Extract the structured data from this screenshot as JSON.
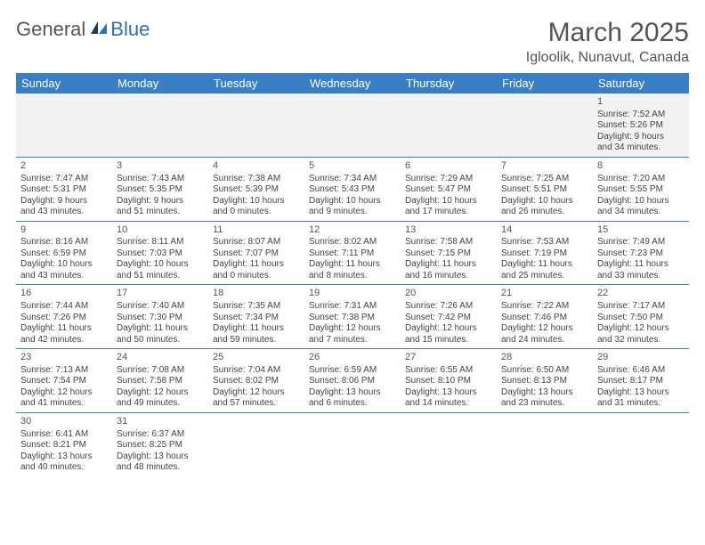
{
  "logo": {
    "text1": "General",
    "text2": "Blue"
  },
  "title": "March 2025",
  "location": "Igloolik, Nunavut, Canada",
  "day_names": [
    "Sunday",
    "Monday",
    "Tuesday",
    "Wednesday",
    "Thursday",
    "Friday",
    "Saturday"
  ],
  "colors": {
    "header_bg": "#3a7fc4",
    "header_text": "#ffffff",
    "first_row_bg": "#f2f2f2",
    "border": "#3a7fc4",
    "text": "#444444",
    "title_text": "#555555"
  },
  "weeks": [
    [
      null,
      null,
      null,
      null,
      null,
      null,
      {
        "n": "1",
        "sr": "Sunrise: 7:52 AM",
        "ss": "Sunset: 5:26 PM",
        "dl1": "Daylight: 9 hours",
        "dl2": "and 34 minutes."
      }
    ],
    [
      {
        "n": "2",
        "sr": "Sunrise: 7:47 AM",
        "ss": "Sunset: 5:31 PM",
        "dl1": "Daylight: 9 hours",
        "dl2": "and 43 minutes."
      },
      {
        "n": "3",
        "sr": "Sunrise: 7:43 AM",
        "ss": "Sunset: 5:35 PM",
        "dl1": "Daylight: 9 hours",
        "dl2": "and 51 minutes."
      },
      {
        "n": "4",
        "sr": "Sunrise: 7:38 AM",
        "ss": "Sunset: 5:39 PM",
        "dl1": "Daylight: 10 hours",
        "dl2": "and 0 minutes."
      },
      {
        "n": "5",
        "sr": "Sunrise: 7:34 AM",
        "ss": "Sunset: 5:43 PM",
        "dl1": "Daylight: 10 hours",
        "dl2": "and 9 minutes."
      },
      {
        "n": "6",
        "sr": "Sunrise: 7:29 AM",
        "ss": "Sunset: 5:47 PM",
        "dl1": "Daylight: 10 hours",
        "dl2": "and 17 minutes."
      },
      {
        "n": "7",
        "sr": "Sunrise: 7:25 AM",
        "ss": "Sunset: 5:51 PM",
        "dl1": "Daylight: 10 hours",
        "dl2": "and 26 minutes."
      },
      {
        "n": "8",
        "sr": "Sunrise: 7:20 AM",
        "ss": "Sunset: 5:55 PM",
        "dl1": "Daylight: 10 hours",
        "dl2": "and 34 minutes."
      }
    ],
    [
      {
        "n": "9",
        "sr": "Sunrise: 8:16 AM",
        "ss": "Sunset: 6:59 PM",
        "dl1": "Daylight: 10 hours",
        "dl2": "and 43 minutes."
      },
      {
        "n": "10",
        "sr": "Sunrise: 8:11 AM",
        "ss": "Sunset: 7:03 PM",
        "dl1": "Daylight: 10 hours",
        "dl2": "and 51 minutes."
      },
      {
        "n": "11",
        "sr": "Sunrise: 8:07 AM",
        "ss": "Sunset: 7:07 PM",
        "dl1": "Daylight: 11 hours",
        "dl2": "and 0 minutes."
      },
      {
        "n": "12",
        "sr": "Sunrise: 8:02 AM",
        "ss": "Sunset: 7:11 PM",
        "dl1": "Daylight: 11 hours",
        "dl2": "and 8 minutes."
      },
      {
        "n": "13",
        "sr": "Sunrise: 7:58 AM",
        "ss": "Sunset: 7:15 PM",
        "dl1": "Daylight: 11 hours",
        "dl2": "and 16 minutes."
      },
      {
        "n": "14",
        "sr": "Sunrise: 7:53 AM",
        "ss": "Sunset: 7:19 PM",
        "dl1": "Daylight: 11 hours",
        "dl2": "and 25 minutes."
      },
      {
        "n": "15",
        "sr": "Sunrise: 7:49 AM",
        "ss": "Sunset: 7:23 PM",
        "dl1": "Daylight: 11 hours",
        "dl2": "and 33 minutes."
      }
    ],
    [
      {
        "n": "16",
        "sr": "Sunrise: 7:44 AM",
        "ss": "Sunset: 7:26 PM",
        "dl1": "Daylight: 11 hours",
        "dl2": "and 42 minutes."
      },
      {
        "n": "17",
        "sr": "Sunrise: 7:40 AM",
        "ss": "Sunset: 7:30 PM",
        "dl1": "Daylight: 11 hours",
        "dl2": "and 50 minutes."
      },
      {
        "n": "18",
        "sr": "Sunrise: 7:35 AM",
        "ss": "Sunset: 7:34 PM",
        "dl1": "Daylight: 11 hours",
        "dl2": "and 59 minutes."
      },
      {
        "n": "19",
        "sr": "Sunrise: 7:31 AM",
        "ss": "Sunset: 7:38 PM",
        "dl1": "Daylight: 12 hours",
        "dl2": "and 7 minutes."
      },
      {
        "n": "20",
        "sr": "Sunrise: 7:26 AM",
        "ss": "Sunset: 7:42 PM",
        "dl1": "Daylight: 12 hours",
        "dl2": "and 15 minutes."
      },
      {
        "n": "21",
        "sr": "Sunrise: 7:22 AM",
        "ss": "Sunset: 7:46 PM",
        "dl1": "Daylight: 12 hours",
        "dl2": "and 24 minutes."
      },
      {
        "n": "22",
        "sr": "Sunrise: 7:17 AM",
        "ss": "Sunset: 7:50 PM",
        "dl1": "Daylight: 12 hours",
        "dl2": "and 32 minutes."
      }
    ],
    [
      {
        "n": "23",
        "sr": "Sunrise: 7:13 AM",
        "ss": "Sunset: 7:54 PM",
        "dl1": "Daylight: 12 hours",
        "dl2": "and 41 minutes."
      },
      {
        "n": "24",
        "sr": "Sunrise: 7:08 AM",
        "ss": "Sunset: 7:58 PM",
        "dl1": "Daylight: 12 hours",
        "dl2": "and 49 minutes."
      },
      {
        "n": "25",
        "sr": "Sunrise: 7:04 AM",
        "ss": "Sunset: 8:02 PM",
        "dl1": "Daylight: 12 hours",
        "dl2": "and 57 minutes."
      },
      {
        "n": "26",
        "sr": "Sunrise: 6:59 AM",
        "ss": "Sunset: 8:06 PM",
        "dl1": "Daylight: 13 hours",
        "dl2": "and 6 minutes."
      },
      {
        "n": "27",
        "sr": "Sunrise: 6:55 AM",
        "ss": "Sunset: 8:10 PM",
        "dl1": "Daylight: 13 hours",
        "dl2": "and 14 minutes."
      },
      {
        "n": "28",
        "sr": "Sunrise: 6:50 AM",
        "ss": "Sunset: 8:13 PM",
        "dl1": "Daylight: 13 hours",
        "dl2": "and 23 minutes."
      },
      {
        "n": "29",
        "sr": "Sunrise: 6:46 AM",
        "ss": "Sunset: 8:17 PM",
        "dl1": "Daylight: 13 hours",
        "dl2": "and 31 minutes."
      }
    ],
    [
      {
        "n": "30",
        "sr": "Sunrise: 6:41 AM",
        "ss": "Sunset: 8:21 PM",
        "dl1": "Daylight: 13 hours",
        "dl2": "and 40 minutes."
      },
      {
        "n": "31",
        "sr": "Sunrise: 6:37 AM",
        "ss": "Sunset: 8:25 PM",
        "dl1": "Daylight: 13 hours",
        "dl2": "and 48 minutes."
      },
      null,
      null,
      null,
      null,
      null
    ]
  ]
}
